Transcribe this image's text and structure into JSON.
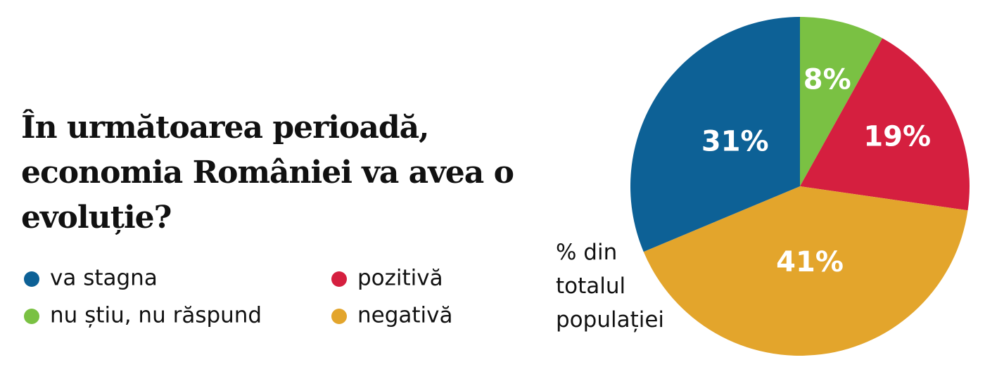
{
  "chart_data": {
    "type": "pie",
    "title": "În următoarea perioadă, economia României va avea o evoluție?",
    "categories": [
      "nu știu, nu răspund",
      "pozitivă",
      "negativă",
      "va stagna"
    ],
    "values": [
      8,
      19,
      41,
      31
    ],
    "value_labels": [
      "8%",
      "19%",
      "41%",
      "31%"
    ],
    "colors": [
      "#7ac143",
      "#d51f3f",
      "#e3a52c",
      "#0d6196"
    ],
    "annotation": "% din totalul populației"
  }
}
